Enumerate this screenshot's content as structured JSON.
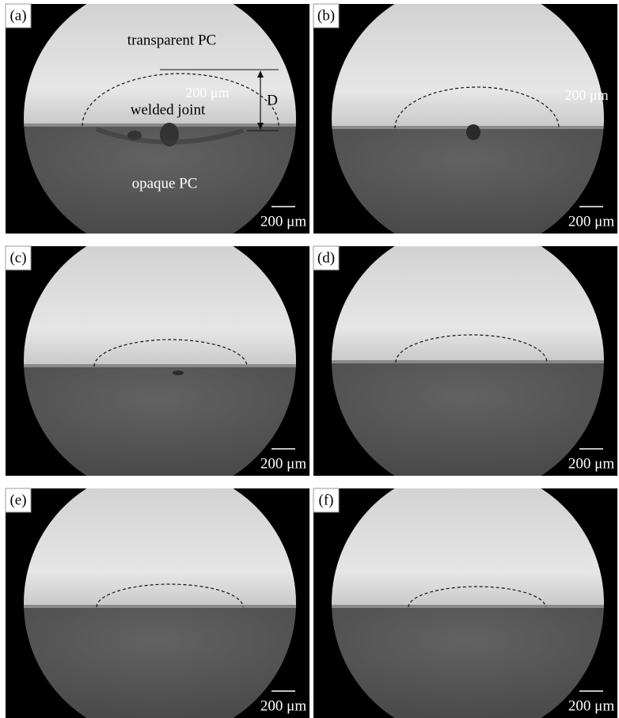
{
  "panels": [
    {
      "label": "(a)",
      "scale_bar": "200 μm",
      "annotations": {
        "top_material": "transparent PC",
        "stray_scale": "200 μm",
        "joint": "welded joint",
        "depth": "D",
        "bottom_material": "opaque PC"
      }
    },
    {
      "label": "(b)",
      "scale_bar": "200 μm",
      "annotations": {
        "stray_scale": "200 μm"
      }
    },
    {
      "label": "(c)",
      "scale_bar": "200 μm"
    },
    {
      "label": "(d)",
      "scale_bar": "200 μm"
    },
    {
      "label": "(e)",
      "scale_bar": "200 μm"
    },
    {
      "label": "(f)",
      "scale_bar": "200 μm"
    }
  ]
}
